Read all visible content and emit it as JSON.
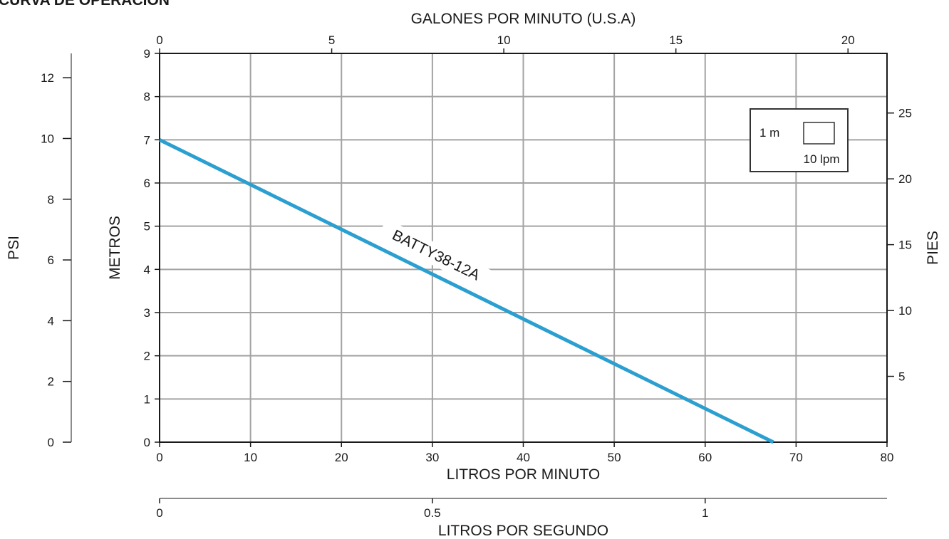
{
  "colors": {
    "series": "#2b9fd0",
    "grid": "#a3a3a3",
    "axis": "#1a1a1a",
    "legend_border": "#333333"
  },
  "chart_data": {
    "type": "line",
    "title": "CURVA DE OPERACIÓN",
    "xlabel": "LITROS POR MINUTO",
    "ylabel": "METROS",
    "xlim": [
      0,
      80
    ],
    "ylim": [
      0,
      9
    ],
    "x_ticks": [
      0,
      10,
      20,
      30,
      40,
      50,
      60,
      70,
      80
    ],
    "y_ticks": [
      0,
      1,
      2,
      3,
      4,
      5,
      6,
      7,
      8,
      9
    ],
    "grid": true,
    "series": [
      {
        "name": "BATTY38-12A",
        "x": [
          0,
          67.5
        ],
        "y": [
          7,
          0
        ]
      }
    ],
    "secondary_axes": {
      "top": {
        "label": "GALONES POR MINUTO (U.S.A)",
        "ticks": [
          0,
          5,
          10,
          15,
          20
        ],
        "unit_per_primary": 0.264172
      },
      "bottom": {
        "label": "LITROS POR SEGUNDO",
        "ticks": [
          "0",
          "0.5",
          "1"
        ],
        "tick_values": [
          0,
          0.5,
          1
        ],
        "unit_per_primary": 0.0166667
      },
      "left": {
        "label": "PSI",
        "ticks": [
          0,
          2,
          4,
          6,
          8,
          10,
          12
        ],
        "unit_per_primary": 1.42233
      },
      "right": {
        "label": "PIES",
        "ticks": [
          5,
          10,
          15,
          20,
          25
        ],
        "unit_per_primary": 3.28084
      }
    },
    "legend_box": {
      "position": "top-right",
      "height_label": "1 m",
      "width_label": "10 lpm"
    }
  }
}
